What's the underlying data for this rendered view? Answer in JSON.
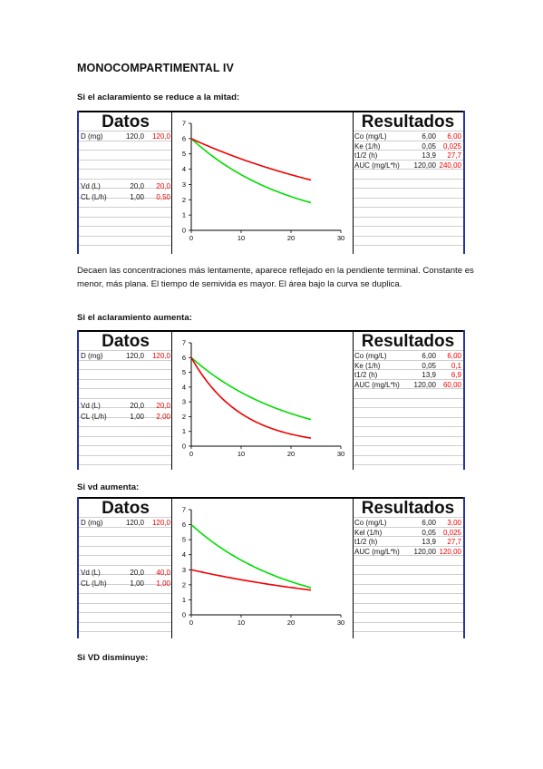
{
  "heading": "MONOCOMPARTIMENTAL IV",
  "paragraph_1": "Decaen las concentraciones más lentamente, aparece reflejado en la pendiente terminal. Constante es menor, más plana. El tiempo de semivida es mayor. El área bajo la curva se duplica.",
  "captions": [
    "Si el aclaramiento se reduce a la mitad:",
    "Si el aclaramiento aumenta:",
    "Si vd aumenta:",
    "Si VD disminuye:"
  ],
  "colors": {
    "frame": "#2233aa",
    "baseline_curve": "#00dd00",
    "modified_curve": "#ee0000",
    "modified_text": "#ee0000"
  },
  "panels": [
    {
      "datos_title": "Datos",
      "datos_rows": [
        {
          "label": "D (mg)",
          "base": "120,0",
          "new": "120,0"
        },
        {
          "label": "Vd (L)",
          "base": "20,0",
          "new": "20,0"
        },
        {
          "label": "CL (L/h)",
          "base": "1,00",
          "new": "0,50"
        }
      ],
      "resultados_title": "Resultados",
      "resultados_rows": [
        {
          "label": "Co (mg/L)",
          "base": "6,00",
          "new": "6,00"
        },
        {
          "label": "Ke (1/h)",
          "base": "0,05",
          "new": "0,025"
        },
        {
          "label": "t1/2 (h)",
          "base": "13,9",
          "new": "27,7"
        },
        {
          "label": "AUC (mg/L*h)",
          "base": "120,00",
          "new": "240,00"
        }
      ],
      "chart_data": {
        "type": "line",
        "xlim": [
          0,
          30
        ],
        "ylim": [
          0,
          7
        ],
        "x_ticks": [
          "0",
          "10",
          "20",
          "30"
        ],
        "y_ticks": [
          "0",
          "1",
          "2",
          "3",
          "4",
          "5",
          "6",
          "7"
        ],
        "series": [
          {
            "color": "#00dd00",
            "c0": 6,
            "k": 0.05,
            "x_end": 24
          },
          {
            "color": "#ee0000",
            "c0": 6,
            "k": 0.025,
            "x_end": 24
          }
        ]
      }
    },
    {
      "datos_title": "Datos",
      "datos_rows": [
        {
          "label": "D (mg)",
          "base": "120,0",
          "new": "120,0"
        },
        {
          "label": "Vd (L)",
          "base": "20,0",
          "new": "20,0"
        },
        {
          "label": "CL (L/h)",
          "base": "1,00",
          "new": "2,00"
        }
      ],
      "resultados_title": "Resultados",
      "resultados_rows": [
        {
          "label": "Co (mg/L)",
          "base": "6,00",
          "new": "6,00"
        },
        {
          "label": "Ke (1/h)",
          "base": "0,05",
          "new": "0,1"
        },
        {
          "label": "t1/2 (h)",
          "base": "13,9",
          "new": "6,9"
        },
        {
          "label": "AUC (mg/L*h)",
          "base": "120,00",
          "new": "60,00"
        }
      ],
      "chart_data": {
        "type": "line",
        "xlim": [
          0,
          30
        ],
        "ylim": [
          0,
          7
        ],
        "x_ticks": [
          "0",
          "10",
          "20",
          "30"
        ],
        "y_ticks": [
          "0",
          "1",
          "2",
          "3",
          "4",
          "5",
          "6",
          "7"
        ],
        "series": [
          {
            "color": "#00dd00",
            "c0": 6,
            "k": 0.05,
            "x_end": 24
          },
          {
            "color": "#ee0000",
            "c0": 6,
            "k": 0.1,
            "x_end": 24
          }
        ]
      }
    },
    {
      "datos_title": "Datos",
      "datos_rows": [
        {
          "label": "D (mg)",
          "base": "120,0",
          "new": "120,0"
        },
        {
          "label": "Vd (L)",
          "base": "20,0",
          "new": "40,0"
        },
        {
          "label": "CL (L/h)",
          "base": "1,00",
          "new": "1,00"
        }
      ],
      "resultados_title": "Resultados",
      "resultados_rows": [
        {
          "label": "Co (mg/L)",
          "base": "6,00",
          "new": "3,00"
        },
        {
          "label": "Kel (1/h)",
          "base": "0,05",
          "new": "0,025"
        },
        {
          "label": "t1/2 (h)",
          "base": "13,9",
          "new": "27,7"
        },
        {
          "label": "AUC (mg/L*h)",
          "base": "120,00",
          "new": "120,00"
        }
      ],
      "chart_data": {
        "type": "line",
        "xlim": [
          0,
          30
        ],
        "ylim": [
          0,
          7
        ],
        "x_ticks": [
          "0",
          "10",
          "20",
          "30"
        ],
        "y_ticks": [
          "0",
          "1",
          "2",
          "3",
          "4",
          "5",
          "6",
          "7"
        ],
        "series": [
          {
            "color": "#00dd00",
            "c0": 6,
            "k": 0.05,
            "x_end": 24
          },
          {
            "color": "#ee0000",
            "c0": 3,
            "k": 0.025,
            "x_end": 24
          }
        ]
      }
    }
  ]
}
